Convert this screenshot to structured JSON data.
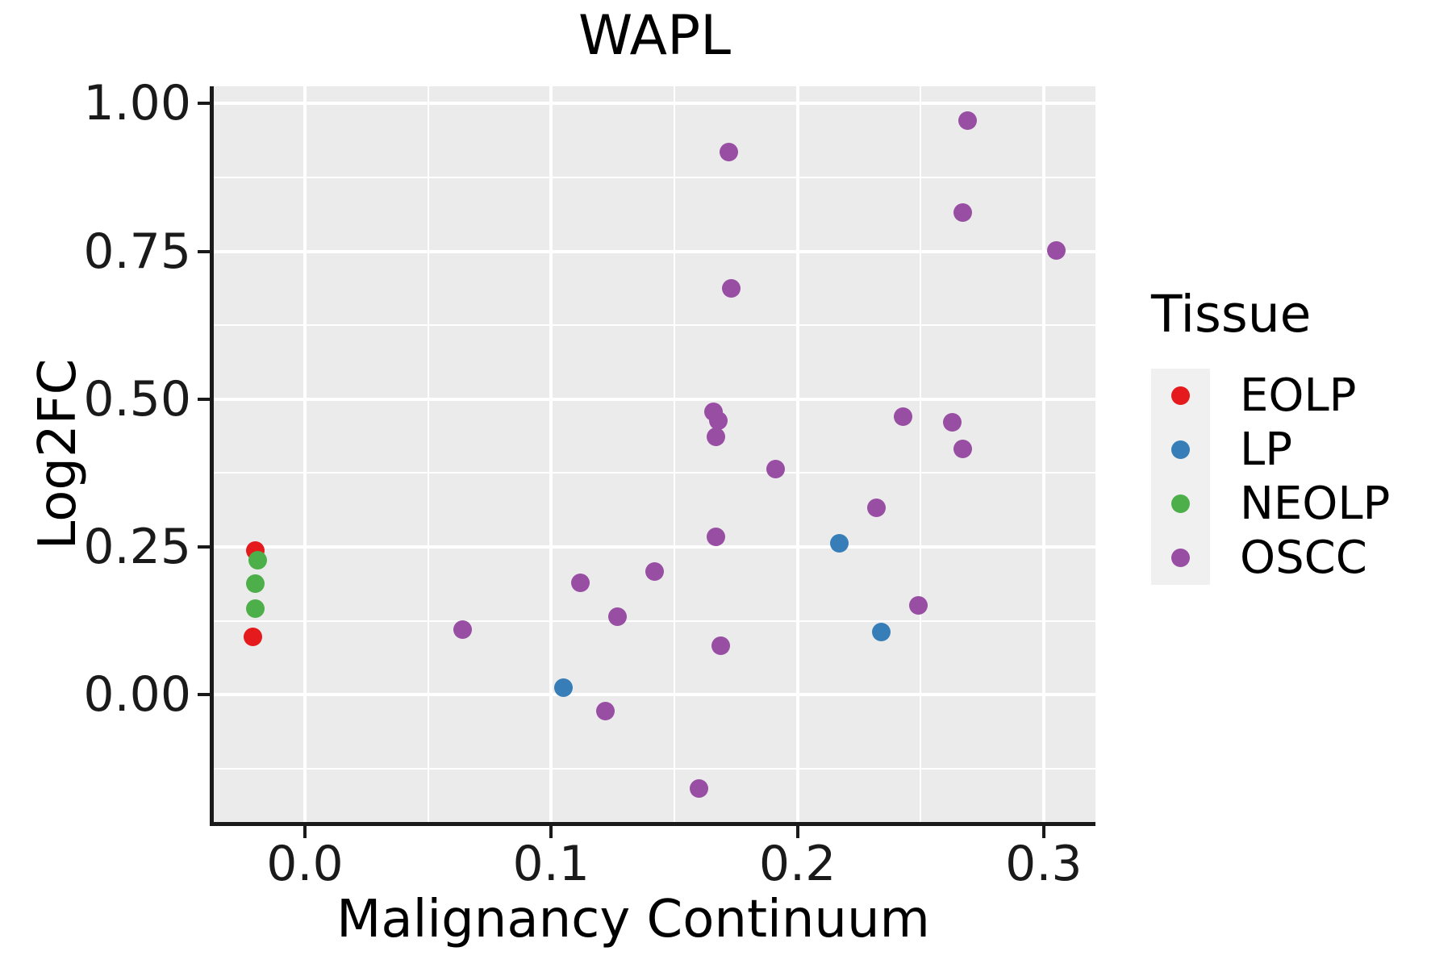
{
  "chart_data": {
    "type": "scatter",
    "title": "WAPL",
    "xlabel": "Malignancy Continuum",
    "ylabel": "Log2FC",
    "legend_title": "Tissue",
    "legend_position": "right",
    "grid": true,
    "panel_bg": "#EBEBEB",
    "grid_color": "#FFFFFF",
    "xlim": [
      -0.037,
      0.321
    ],
    "ylim": [
      -0.215,
      1.029
    ],
    "x_ticks": [
      {
        "v": 0.0,
        "label": "0.0"
      },
      {
        "v": 0.1,
        "label": "0.1"
      },
      {
        "v": 0.2,
        "label": "0.2"
      },
      {
        "v": 0.3,
        "label": "0.3"
      }
    ],
    "x_minor": [
      0.05,
      0.15,
      0.25
    ],
    "y_ticks": [
      {
        "v": 0.0,
        "label": "0.00"
      },
      {
        "v": 0.25,
        "label": "0.25"
      },
      {
        "v": 0.5,
        "label": "0.50"
      },
      {
        "v": 0.75,
        "label": "0.75"
      },
      {
        "v": 1.0,
        "label": "1.00"
      }
    ],
    "y_minor": [
      -0.125,
      0.125,
      0.375,
      0.625,
      0.875
    ],
    "series": [
      {
        "name": "EOLP",
        "color": "#E41A1C",
        "points": [
          [
            -0.02,
            0.244
          ],
          [
            -0.021,
            0.098
          ]
        ]
      },
      {
        "name": "LP",
        "color": "#377EB8",
        "points": [
          [
            0.105,
            0.012
          ],
          [
            0.217,
            0.256
          ],
          [
            0.234,
            0.106
          ]
        ]
      },
      {
        "name": "NEOLP",
        "color": "#4DAF4A",
        "points": [
          [
            -0.019,
            0.227
          ],
          [
            -0.02,
            0.188
          ],
          [
            -0.02,
            0.146
          ]
        ]
      },
      {
        "name": "OSCC",
        "color": "#984EA3",
        "points": [
          [
            0.269,
            0.971
          ],
          [
            0.172,
            0.918
          ],
          [
            0.267,
            0.815
          ],
          [
            0.305,
            0.752
          ],
          [
            0.173,
            0.687
          ],
          [
            0.166,
            0.478
          ],
          [
            0.168,
            0.463
          ],
          [
            0.167,
            0.437
          ],
          [
            0.243,
            0.471
          ],
          [
            0.263,
            0.461
          ],
          [
            0.267,
            0.416
          ],
          [
            0.191,
            0.382
          ],
          [
            0.232,
            0.316
          ],
          [
            0.167,
            0.267
          ],
          [
            0.142,
            0.208
          ],
          [
            0.112,
            0.189
          ],
          [
            0.127,
            0.132
          ],
          [
            0.064,
            0.11
          ],
          [
            0.169,
            0.083
          ],
          [
            0.249,
            0.151
          ],
          [
            0.122,
            -0.027
          ],
          [
            0.16,
            -0.158
          ]
        ]
      }
    ]
  }
}
